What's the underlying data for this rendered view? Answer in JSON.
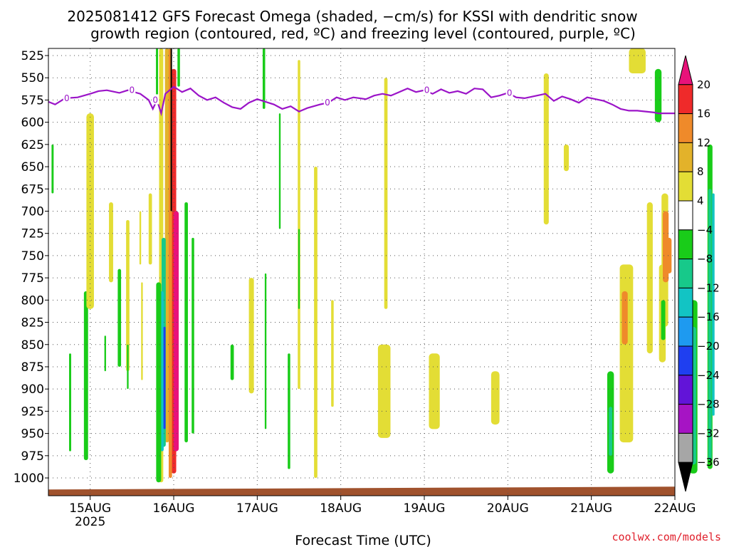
{
  "title_line1": "2025081412 GFS Forecast Omega (shaded, −cm/s) for KSSI with dendritic snow",
  "title_line2": "growth region (contoured, red, ºC) and freezing level (contoured, purple, ºC)",
  "xlabel": "Forecast Time (UTC)",
  "credit": "coolwx.com/models",
  "credit_color": "#e0202c",
  "chart_data": {
    "type": "heatmap",
    "y_axis": {
      "label": "",
      "unit": "hPa",
      "inverted": true,
      "range": [
        1020,
        517
      ],
      "ticks": [
        525,
        550,
        575,
        600,
        625,
        650,
        675,
        700,
        725,
        750,
        775,
        800,
        825,
        850,
        875,
        900,
        925,
        950,
        975,
        1000
      ]
    },
    "x_axis": {
      "range": [
        "2025-08-14T12Z",
        "2025-08-22T00Z"
      ],
      "ticks": [
        {
          "label": "15AUG",
          "sub": "2025",
          "t": "2025-08-15T00Z"
        },
        {
          "label": "16AUG",
          "sub": "",
          "t": "2025-08-16T00Z"
        },
        {
          "label": "17AUG",
          "sub": "",
          "t": "2025-08-17T00Z"
        },
        {
          "label": "18AUG",
          "sub": "",
          "t": "2025-08-18T00Z"
        },
        {
          "label": "19AUG",
          "sub": "",
          "t": "2025-08-19T00Z"
        },
        {
          "label": "20AUG",
          "sub": "",
          "t": "2025-08-20T00Z"
        },
        {
          "label": "21AUG",
          "sub": "",
          "t": "2025-08-21T00Z"
        },
        {
          "label": "22AUG",
          "sub": "",
          "t": "2025-08-22T00Z"
        }
      ]
    },
    "grid": true,
    "colorbar": {
      "labels": [
        "20",
        "16",
        "12",
        "8",
        "4",
        "−4",
        "−8",
        "−12",
        "−16",
        "−20",
        "−24",
        "−28",
        "−32",
        "−36"
      ],
      "colors": [
        "#e8127a",
        "#ef2a2a",
        "#ef8a2a",
        "#e3b22a",
        "#e3dd35",
        "#ffffff",
        "#19cc19",
        "#17c98a",
        "#12c4c4",
        "#1e9af0",
        "#1f3ff0",
        "#6214d8",
        "#a614c4",
        "#a6a6a6",
        "#000000"
      ]
    },
    "freezing_level": {
      "label": "0",
      "color": "#9b14c8",
      "points": [
        {
          "t": 0.0,
          "p": 577
        },
        {
          "t": 0.08,
          "p": 580
        },
        {
          "t": 0.2,
          "p": 573
        },
        {
          "t": 0.35,
          "p": 572
        },
        {
          "t": 0.5,
          "p": 568
        },
        {
          "t": 0.6,
          "p": 565
        },
        {
          "t": 0.7,
          "p": 564
        },
        {
          "t": 0.85,
          "p": 567
        },
        {
          "t": 0.95,
          "p": 564
        },
        {
          "t": 1.1,
          "p": 568
        },
        {
          "t": 1.2,
          "p": 575
        },
        {
          "t": 1.25,
          "p": 585
        },
        {
          "t": 1.3,
          "p": 575
        },
        {
          "t": 1.35,
          "p": 590
        },
        {
          "t": 1.4,
          "p": 568
        },
        {
          "t": 1.5,
          "p": 560
        },
        {
          "t": 1.6,
          "p": 566
        },
        {
          "t": 1.7,
          "p": 562
        },
        {
          "t": 1.8,
          "p": 570
        },
        {
          "t": 1.9,
          "p": 575
        },
        {
          "t": 2.0,
          "p": 572
        },
        {
          "t": 2.1,
          "p": 578
        },
        {
          "t": 2.2,
          "p": 583
        },
        {
          "t": 2.3,
          "p": 585
        },
        {
          "t": 2.4,
          "p": 578
        },
        {
          "t": 2.5,
          "p": 574
        },
        {
          "t": 2.6,
          "p": 577
        },
        {
          "t": 2.7,
          "p": 580
        },
        {
          "t": 2.8,
          "p": 585
        },
        {
          "t": 2.9,
          "p": 582
        },
        {
          "t": 3.0,
          "p": 588
        },
        {
          "t": 3.1,
          "p": 584
        },
        {
          "t": 3.25,
          "p": 580
        },
        {
          "t": 3.35,
          "p": 578
        },
        {
          "t": 3.45,
          "p": 572
        },
        {
          "t": 3.55,
          "p": 575
        },
        {
          "t": 3.65,
          "p": 572
        },
        {
          "t": 3.8,
          "p": 574
        },
        {
          "t": 3.9,
          "p": 570
        },
        {
          "t": 4.0,
          "p": 568
        },
        {
          "t": 4.1,
          "p": 570
        },
        {
          "t": 4.2,
          "p": 566
        },
        {
          "t": 4.3,
          "p": 562
        },
        {
          "t": 4.4,
          "p": 566
        },
        {
          "t": 4.5,
          "p": 564
        },
        {
          "t": 4.6,
          "p": 568
        },
        {
          "t": 4.7,
          "p": 563
        },
        {
          "t": 4.8,
          "p": 567
        },
        {
          "t": 4.9,
          "p": 565
        },
        {
          "t": 5.0,
          "p": 568
        },
        {
          "t": 5.1,
          "p": 562
        },
        {
          "t": 5.2,
          "p": 563
        },
        {
          "t": 5.3,
          "p": 572
        },
        {
          "t": 5.4,
          "p": 570
        },
        {
          "t": 5.5,
          "p": 567
        },
        {
          "t": 5.6,
          "p": 572
        },
        {
          "t": 5.7,
          "p": 573
        },
        {
          "t": 5.8,
          "p": 571
        },
        {
          "t": 5.95,
          "p": 568
        },
        {
          "t": 6.05,
          "p": 576
        },
        {
          "t": 6.15,
          "p": 571
        },
        {
          "t": 6.25,
          "p": 574
        },
        {
          "t": 6.35,
          "p": 578
        },
        {
          "t": 6.45,
          "p": 572
        },
        {
          "t": 6.55,
          "p": 574
        },
        {
          "t": 6.65,
          "p": 576
        },
        {
          "t": 6.75,
          "p": 580
        },
        {
          "t": 6.85,
          "p": 585
        },
        {
          "t": 6.95,
          "p": 587
        },
        {
          "t": 7.05,
          "p": 587
        },
        {
          "t": 7.15,
          "p": 588
        },
        {
          "t": 7.25,
          "p": 589
        },
        {
          "t": 7.3,
          "p": 590
        },
        {
          "t": 7.5,
          "p": 590
        }
      ],
      "inline_labels": [
        0.22,
        1.0,
        1.28,
        3.34,
        4.53,
        5.52
      ]
    },
    "shaded_regions": [
      {
        "value": 4,
        "t": 1.35,
        "p_top": 517,
        "p_bot": 1005,
        "w": 0.05
      },
      {
        "value": 8,
        "t": 1.42,
        "p_top": 517,
        "p_bot": 960,
        "w": 0.05
      },
      {
        "value": 16,
        "t": 1.5,
        "p_top": 540,
        "p_bot": 995,
        "w": 0.06
      },
      {
        "value": 20,
        "t": 1.53,
        "p_top": 700,
        "p_bot": 970,
        "w": 0.06
      },
      {
        "value": 12,
        "t": 1.46,
        "p_top": 517,
        "p_bot": 1000,
        "w": 0.04
      },
      {
        "value": -36,
        "t": 1.47,
        "p_top": 517,
        "p_bot": 700,
        "w": 0.015
      },
      {
        "value": -8,
        "t": 1.3,
        "p_top": 517,
        "p_bot": 575,
        "w": 0.025
      },
      {
        "value": -8,
        "t": 1.56,
        "p_top": 517,
        "p_bot": 560,
        "w": 0.03
      },
      {
        "value": -12,
        "t": 1.38,
        "p_top": 730,
        "p_bot": 965,
        "w": 0.05
      },
      {
        "value": -16,
        "t": 1.36,
        "p_top": 790,
        "p_bot": 970,
        "w": 0.04
      },
      {
        "value": -24,
        "t": 1.39,
        "p_top": 830,
        "p_bot": 945,
        "w": 0.025
      },
      {
        "value": -8,
        "t": 1.32,
        "p_top": 780,
        "p_bot": 1005,
        "w": 0.06
      },
      {
        "value": -8,
        "t": 1.65,
        "p_top": 690,
        "p_bot": 960,
        "w": 0.04
      },
      {
        "value": -8,
        "t": 1.73,
        "p_top": 730,
        "p_bot": 950,
        "w": 0.03
      },
      {
        "value": -8,
        "t": 0.05,
        "p_top": 625,
        "p_bot": 680,
        "w": 0.025
      },
      {
        "value": -8,
        "t": 0.26,
        "p_top": 860,
        "p_bot": 970,
        "w": 0.025
      },
      {
        "value": -8,
        "t": 0.45,
        "p_top": 790,
        "p_bot": 980,
        "w": 0.05
      },
      {
        "value": -8,
        "t": 0.68,
        "p_top": 840,
        "p_bot": 880,
        "w": 0.02
      },
      {
        "value": -8,
        "t": 0.85,
        "p_top": 765,
        "p_bot": 875,
        "w": 0.04
      },
      {
        "value": 4,
        "t": 0.5,
        "p_top": 590,
        "p_bot": 810,
        "w": 0.09
      },
      {
        "value": 4,
        "t": 0.75,
        "p_top": 690,
        "p_bot": 780,
        "w": 0.05
      },
      {
        "value": 4,
        "t": 0.95,
        "p_top": 710,
        "p_bot": 880,
        "w": 0.04
      },
      {
        "value": 4,
        "t": 1.1,
        "p_top": 700,
        "p_bot": 760,
        "w": 0.02
      },
      {
        "value": 4,
        "t": 1.12,
        "p_top": 780,
        "p_bot": 890,
        "w": 0.02
      },
      {
        "value": 4,
        "t": 1.22,
        "p_top": 680,
        "p_bot": 760,
        "w": 0.04
      },
      {
        "value": 4,
        "t": 2.43,
        "p_top": 775,
        "p_bot": 905,
        "w": 0.06
      },
      {
        "value": 4,
        "t": 3.0,
        "p_top": 530,
        "p_bot": 900,
        "w": 0.03
      },
      {
        "value": 4,
        "t": 3.2,
        "p_top": 650,
        "p_bot": 1000,
        "w": 0.04
      },
      {
        "value": 4,
        "t": 3.4,
        "p_top": 800,
        "p_bot": 920,
        "w": 0.03
      },
      {
        "value": 4,
        "t": 4.04,
        "p_top": 550,
        "p_bot": 810,
        "w": 0.04
      },
      {
        "value": 4,
        "t": 4.02,
        "p_top": 850,
        "p_bot": 955,
        "w": 0.15
      },
      {
        "value": 4,
        "t": 4.62,
        "p_top": 860,
        "p_bot": 945,
        "w": 0.13
      },
      {
        "value": 4,
        "t": 5.35,
        "p_top": 880,
        "p_bot": 940,
        "w": 0.1
      },
      {
        "value": 4,
        "t": 5.96,
        "p_top": 545,
        "p_bot": 715,
        "w": 0.06
      },
      {
        "value": 4,
        "t": 6.2,
        "p_top": 625,
        "p_bot": 655,
        "w": 0.06
      },
      {
        "value": 4,
        "t": 6.92,
        "p_top": 760,
        "p_bot": 960,
        "w": 0.16
      },
      {
        "value": 4,
        "t": 7.05,
        "p_top": 517,
        "p_bot": 545,
        "w": 0.2
      },
      {
        "value": 4,
        "t": 7.2,
        "p_top": 690,
        "p_bot": 860,
        "w": 0.07
      },
      {
        "value": 4,
        "t": 7.35,
        "p_top": 760,
        "p_bot": 870,
        "w": 0.08
      },
      {
        "value": 4,
        "t": 7.38,
        "p_top": 680,
        "p_bot": 830,
        "w": 0.08
      },
      {
        "value": 12,
        "t": 6.9,
        "p_top": 790,
        "p_bot": 850,
        "w": 0.07
      },
      {
        "value": 12,
        "t": 7.39,
        "p_top": 700,
        "p_bot": 780,
        "w": 0.07
      },
      {
        "value": 12,
        "t": 7.43,
        "p_top": 730,
        "p_bot": 770,
        "w": 0.06
      },
      {
        "value": -8,
        "t": 0.95,
        "p_top": 850,
        "p_bot": 900,
        "w": 0.02
      },
      {
        "value": -8,
        "t": 2.2,
        "p_top": 850,
        "p_bot": 890,
        "w": 0.04
      },
      {
        "value": -8,
        "t": 2.58,
        "p_top": 517,
        "p_bot": 585,
        "w": 0.03
      },
      {
        "value": -8,
        "t": 2.77,
        "p_top": 590,
        "p_bot": 720,
        "w": 0.02
      },
      {
        "value": -8,
        "t": 3.0,
        "p_top": 720,
        "p_bot": 810,
        "w": 0.02
      },
      {
        "value": -8,
        "t": 2.6,
        "p_top": 770,
        "p_bot": 945,
        "w": 0.02
      },
      {
        "value": -8,
        "t": 2.88,
        "p_top": 860,
        "p_bot": 990,
        "w": 0.03
      },
      {
        "value": -8,
        "t": 6.73,
        "p_top": 880,
        "p_bot": 995,
        "w": 0.08
      },
      {
        "value": -8,
        "t": 7.3,
        "p_top": 540,
        "p_bot": 600,
        "w": 0.08
      },
      {
        "value": -8,
        "t": 7.36,
        "p_top": 800,
        "p_bot": 845,
        "w": 0.05
      },
      {
        "value": -8,
        "t": 7.72,
        "p_top": 800,
        "p_bot": 995,
        "w": 0.1
      },
      {
        "value": -8,
        "t": 7.92,
        "p_top": 625,
        "p_bot": 990,
        "w": 0.06
      },
      {
        "value": -12,
        "t": 7.72,
        "p_top": 830,
        "p_bot": 985,
        "w": 0.07
      },
      {
        "value": -12,
        "t": 7.92,
        "p_top": 675,
        "p_bot": 980,
        "w": 0.04
      },
      {
        "value": -12,
        "t": 6.73,
        "p_top": 920,
        "p_bot": 975,
        "w": 0.04
      },
      {
        "value": -16,
        "t": 7.96,
        "p_top": 680,
        "p_bot": 930,
        "w": 0.03
      }
    ],
    "ground": {
      "color": "#a0522d",
      "p_top": 1013
    }
  }
}
